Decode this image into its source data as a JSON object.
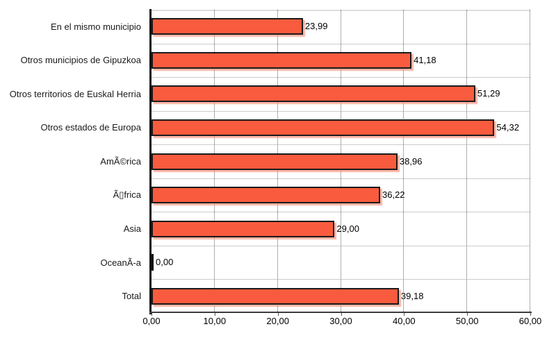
{
  "chart_data": {
    "type": "bar",
    "orientation": "horizontal",
    "title": "",
    "xlabel": "",
    "ylabel": "",
    "xlim": [
      0,
      60
    ],
    "x_tick_values": [
      0,
      10,
      20,
      30,
      40,
      50,
      60
    ],
    "x_tick_labels": [
      "0,00",
      "10,00",
      "20,00",
      "30,00",
      "40,00",
      "50,00",
      "60,00"
    ],
    "categories": [
      "En el mismo municipio",
      "Otros municipios de Gipuzkoa",
      "Otros territorios de Euskal Herria",
      "Otros estados de Europa",
      "AmÃ©rica",
      "Ã▯frica",
      "Asia",
      "OceanÃ-a",
      "Total"
    ],
    "values": [
      23.99,
      41.18,
      51.29,
      54.32,
      38.96,
      36.22,
      29.0,
      0.0,
      39.18
    ],
    "value_labels": [
      "23,99",
      "41,18",
      "51,29",
      "54,32",
      "38,96",
      "36,22",
      "29,00",
      "0,00",
      "39,18"
    ],
    "legend": "none",
    "grid": {
      "vertical_gridlines": "dotted",
      "horizontal_row_separators": true
    },
    "colors": {
      "bar_fill": "#F95B3E",
      "bar_border": "#1A1A1A",
      "bar_shadow": "#F68A75",
      "gridline": "#5F5F5F",
      "row_separator": "#CCCCCC",
      "axis_line": "#111111",
      "text": "#000000",
      "background": "#FFFFFF"
    }
  }
}
